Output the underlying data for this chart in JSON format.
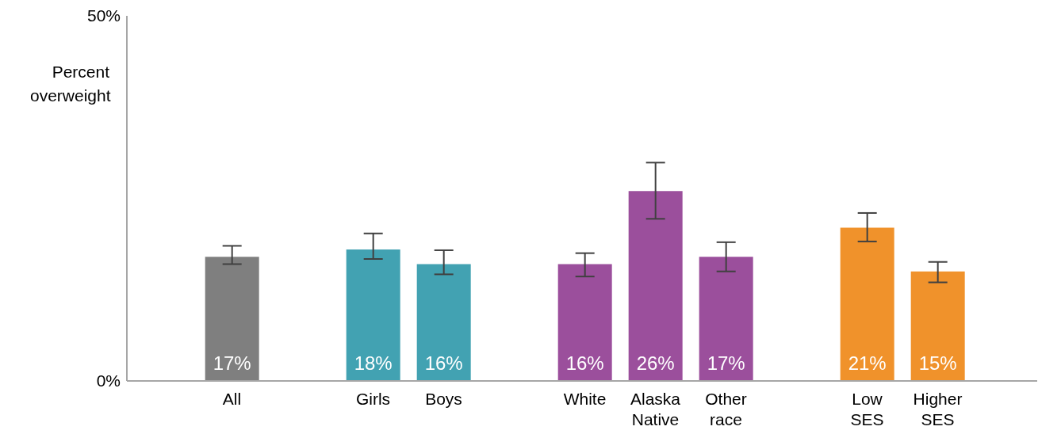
{
  "chart_data": {
    "type": "bar",
    "ylabel": "Percent overweight",
    "categories": [
      "All",
      null,
      "Girls",
      "Boys",
      null,
      "White",
      "Alaska Native",
      "Other race",
      null,
      "Low SES",
      "Higher SES"
    ],
    "values": [
      17,
      null,
      18,
      16,
      null,
      16,
      26,
      17,
      null,
      21,
      15
    ],
    "value_labels": [
      "17%",
      null,
      "18%",
      "16%",
      null,
      "16%",
      "26%",
      "17%",
      null,
      "21%",
      "15%"
    ],
    "colors": [
      "#7f7f7f",
      null,
      "#42a2b2",
      "#42a2b2",
      null,
      "#9b4f9c",
      "#9b4f9c",
      "#9b4f9c",
      null,
      "#f0922b",
      "#f0922b"
    ],
    "errors": [
      [
        16,
        18.5
      ],
      null,
      [
        16.7,
        20.2
      ],
      [
        14.6,
        17.9
      ],
      null,
      [
        14.3,
        17.5
      ],
      [
        22.2,
        29.9
      ],
      [
        15,
        19
      ],
      null,
      [
        19.1,
        23
      ],
      [
        13.5,
        16.3
      ]
    ],
    "ylim": [
      0,
      50
    ],
    "yticks": [
      {
        "value": 0,
        "label": "0%"
      },
      {
        "value": 50,
        "label": "50%"
      }
    ],
    "grid": false,
    "legend": false
  }
}
